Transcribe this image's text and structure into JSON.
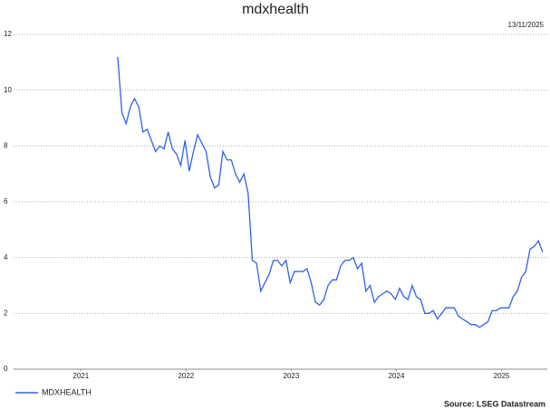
{
  "chart_data": {
    "type": "line",
    "title": "mdxhealth",
    "date": "13/11/2025",
    "source": "Source: LSEG Datastream",
    "x": [
      2021.85,
      2021.89,
      2021.93,
      2021.97,
      2022.01,
      2022.05,
      2022.09,
      2022.13,
      2022.17,
      2022.21,
      2022.25,
      2022.29,
      2022.33,
      2022.37,
      2022.41,
      2022.45,
      2022.49,
      2022.53,
      2022.57,
      2022.61,
      2022.65,
      2022.69,
      2022.73,
      2022.77,
      2022.81,
      2022.85,
      2022.89,
      2022.93,
      2022.97,
      2023.01,
      2023.05,
      2023.09,
      2023.13,
      2023.17,
      2023.21,
      2023.25,
      2023.29,
      2023.33,
      2023.37,
      2023.41,
      2023.45,
      2023.49,
      2023.53,
      2023.57,
      2023.61,
      2023.65,
      2023.69,
      2023.73,
      2023.77,
      2023.81,
      2023.85,
      2023.89,
      2023.93,
      2023.97,
      2024.01,
      2024.05,
      2024.09,
      2024.13,
      2024.17,
      2024.21,
      2024.25,
      2024.29,
      2024.33,
      2024.37,
      2024.41,
      2024.45,
      2024.49,
      2024.53,
      2024.57,
      2024.61,
      2024.65,
      2024.69,
      2024.73,
      2024.77,
      2024.81,
      2024.85,
      2024.89,
      2024.93,
      2024.97,
      2025.01,
      2025.05,
      2025.09,
      2025.13,
      2025.17,
      2025.21,
      2025.25,
      2025.29,
      2025.33,
      2025.37,
      2025.41,
      2025.45,
      2025.49,
      2025.53,
      2025.57,
      2025.61,
      2025.65,
      2025.69,
      2025.73,
      2025.77,
      2025.81,
      2025.85,
      2025.89
    ],
    "series": [
      {
        "name": "MDXHEALTH",
        "color": "#2f62e6",
        "values": [
          11.2,
          9.2,
          8.8,
          9.4,
          9.7,
          9.4,
          8.5,
          8.6,
          8.2,
          7.8,
          8.0,
          7.9,
          8.5,
          7.9,
          7.7,
          7.3,
          8.2,
          7.1,
          7.8,
          8.4,
          8.1,
          7.8,
          6.9,
          6.5,
          6.6,
          7.8,
          7.5,
          7.5,
          7.0,
          6.7,
          7.0,
          6.3,
          3.9,
          3.8,
          2.8,
          3.1,
          3.4,
          3.9,
          3.9,
          3.7,
          3.9,
          3.1,
          3.5,
          3.5,
          3.5,
          3.6,
          3.1,
          2.4,
          2.3,
          2.5,
          3.0,
          3.2,
          3.2,
          3.7,
          3.9,
          3.9,
          4.0,
          3.6,
          3.8,
          2.8,
          3.0,
          2.4,
          2.6,
          2.7,
          2.8,
          2.7,
          2.5,
          2.9,
          2.6,
          2.5,
          3.0,
          2.6,
          2.5,
          2.0,
          2.0,
          2.1,
          1.8,
          2.0,
          2.2,
          2.2,
          2.2,
          1.9,
          1.8,
          1.7,
          1.6,
          1.6,
          1.5,
          1.6,
          1.7,
          2.1,
          2.1,
          2.2,
          2.2,
          2.2,
          2.6,
          2.8,
          3.3,
          3.5,
          4.3,
          4.4,
          4.6,
          4.2
        ]
      }
    ],
    "xlim": [
      2020.86,
      2025.9
    ],
    "xticks": [
      {
        "value": 2021.5,
        "label": "2021"
      },
      {
        "value": 2022.5,
        "label": "2022"
      },
      {
        "value": 2023.5,
        "label": "2023"
      },
      {
        "value": 2024.5,
        "label": "2024"
      },
      {
        "value": 2025.5,
        "label": "2025"
      }
    ],
    "ylim": [
      0,
      12
    ],
    "yticks": [
      0,
      2,
      4,
      6,
      8,
      10,
      12
    ],
    "grid": true
  }
}
